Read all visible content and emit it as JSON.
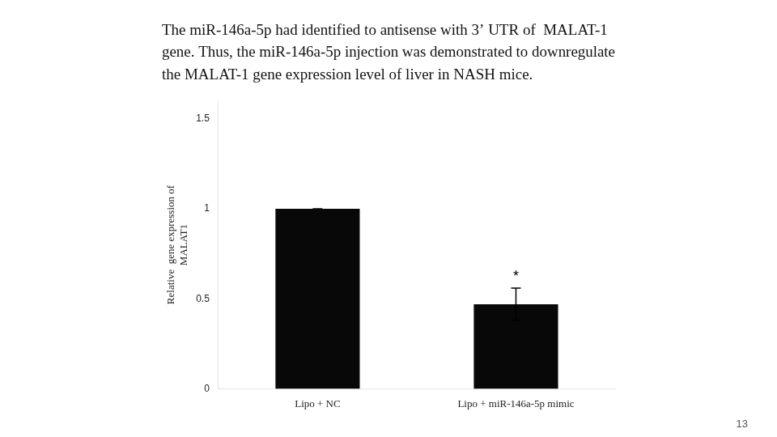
{
  "chart_data": {
    "type": "bar",
    "title": "The miR-146a-5p had identified to antisense with 3’ UTR of  MALAT-1\ngene. Thus, the miR-146a-5p injection was demonstrated to downregulate\nthe MALAT-1 gene expression level of liver in NASH mice.",
    "categories": [
      "Lipo + NC",
      "Lipo + miR-146a-5p mimic"
    ],
    "values": [
      1.0,
      0.47
    ],
    "error_bars": [
      0.0,
      0.09
    ],
    "color": "#080808",
    "ylabel": "Relative  gene expression of\nMALAT1",
    "ylim": [
      0,
      1.6
    ],
    "yticks": [
      0,
      0.5,
      1,
      1.5
    ],
    "annotations": [
      {
        "text": "*",
        "x": "Lipo + miR-146a-5p mimic",
        "y": 0.58
      }
    ],
    "page_number": "13",
    "grid": false
  }
}
